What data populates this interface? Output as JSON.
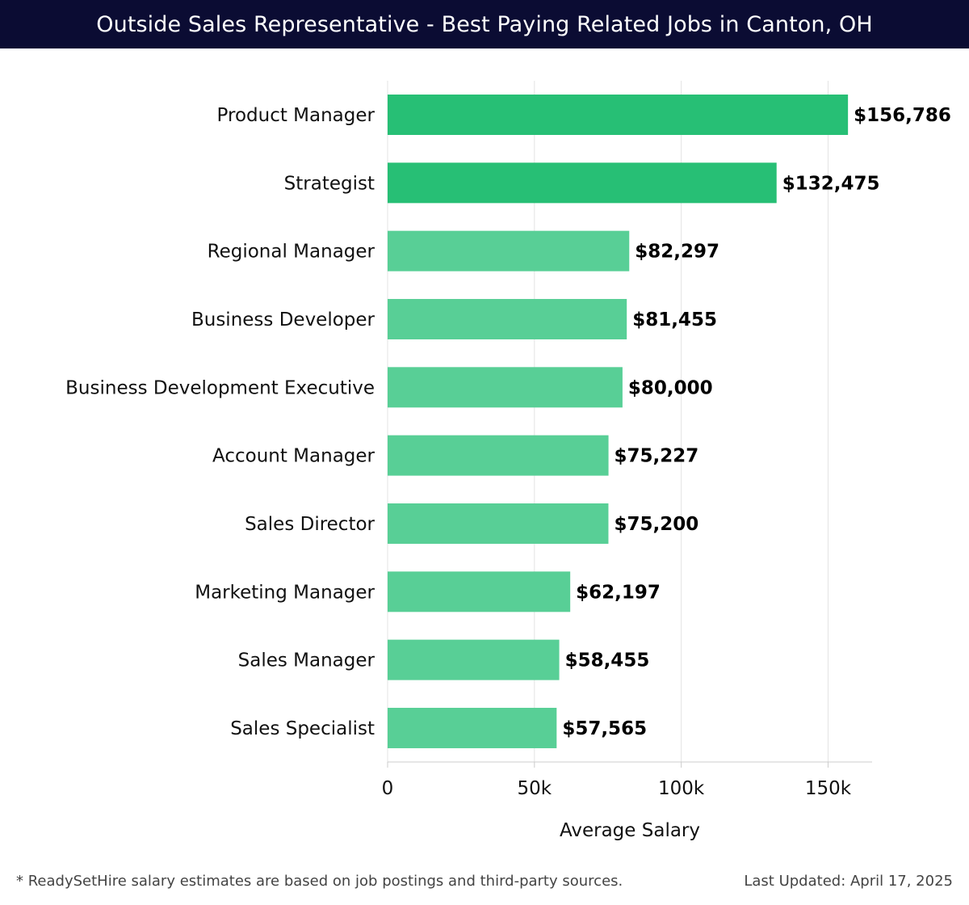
{
  "title": "Outside Sales Representative - Best Paying Related Jobs in Canton, OH",
  "footnote_left": "* ReadySetHire salary estimates are based on job postings and third-party sources.",
  "footnote_right": "Last Updated: April 17, 2025",
  "colors": {
    "title_bg": "#0b0c33",
    "bar_dark": "#27bf75",
    "bar_light": "#58cf96",
    "grid": "#e3e3e3"
  },
  "chart_data": {
    "type": "bar",
    "orientation": "horizontal",
    "categories": [
      "Product Manager",
      "Strategist",
      "Regional Manager",
      "Business Developer",
      "Business Development Executive",
      "Account Manager",
      "Sales Director",
      "Marketing Manager",
      "Sales Manager",
      "Sales Specialist"
    ],
    "values": [
      156786,
      132475,
      82297,
      81455,
      80000,
      75227,
      75200,
      62197,
      58455,
      57565
    ],
    "value_labels": [
      "$156,786",
      "$132,475",
      "$82,297",
      "$81,455",
      "$80,000",
      "$75,227",
      "$75,200",
      "$62,197",
      "$58,455",
      "$57,565"
    ],
    "xlabel": "Average Salary",
    "ylabel": "",
    "xlim": [
      0,
      165000
    ],
    "xticks": [
      0,
      50000,
      100000,
      150000
    ],
    "xtick_labels": [
      "0",
      "50k",
      "100k",
      "150k"
    ],
    "grid": "vertical",
    "legend": "none"
  }
}
